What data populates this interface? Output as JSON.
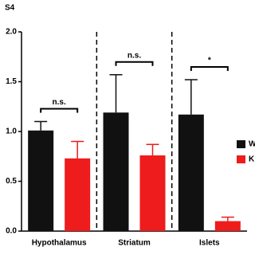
{
  "chart_data": {
    "type": "bar",
    "panel_label": "S4",
    "categories": [
      "Hypothalamus",
      "Striatum",
      "Islets"
    ],
    "series": [
      {
        "name": "W",
        "color": "#111111",
        "values": [
          1.01,
          1.19,
          1.17
        ],
        "errors": [
          0.09,
          0.38,
          0.35
        ]
      },
      {
        "name": "K",
        "color": "#ee1c1c",
        "values": [
          0.73,
          0.76,
          0.1
        ],
        "errors": [
          0.17,
          0.11,
          0.04
        ]
      }
    ],
    "ylim": [
      0,
      2
    ],
    "yticks": [
      {
        "value": 0,
        "label": "0.0"
      },
      {
        "value": 0.5,
        "label": "0.5"
      },
      {
        "value": 1,
        "label": "1.0"
      },
      {
        "value": 1.5,
        "label": "1.5"
      },
      {
        "value": 2,
        "label": "2.0"
      }
    ],
    "annotations": [
      "n.s.",
      "n.s.",
      "*"
    ]
  }
}
